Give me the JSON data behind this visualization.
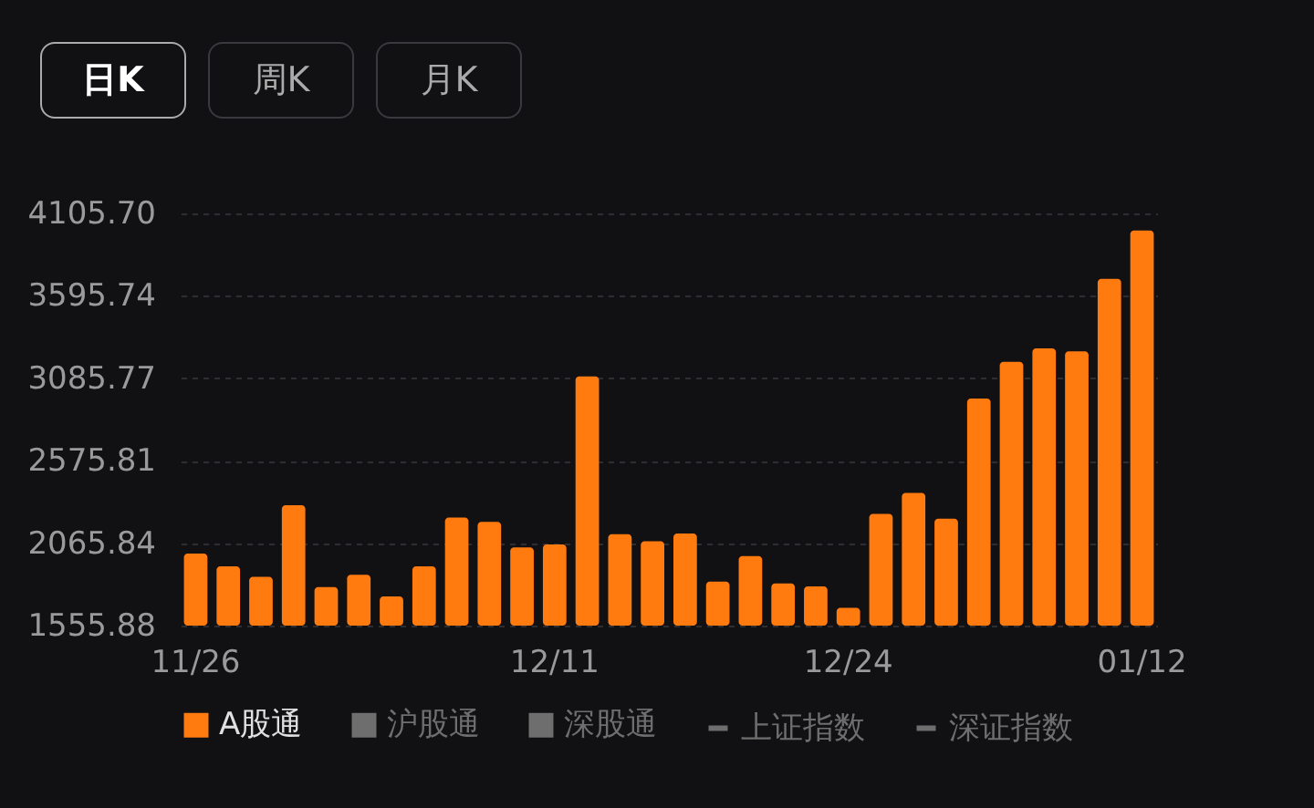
{
  "chart_data": {
    "type": "bar",
    "annotations": [
      "日K",
      "周K",
      "月K"
    ],
    "categories": [
      "11/26",
      null,
      null,
      null,
      null,
      null,
      null,
      null,
      null,
      null,
      null,
      "12/11",
      null,
      null,
      null,
      null,
      null,
      null,
      null,
      null,
      "12/24",
      null,
      null,
      null,
      null,
      null,
      null,
      null,
      null,
      "01/12"
    ],
    "series": [
      {
        "name": "A股通",
        "color": "#ff7a0f",
        "values": [
          2001,
          1922,
          1858,
          2300,
          1794,
          1870,
          1737,
          1922,
          2224,
          2198,
          2040,
          2058,
          3097,
          2122,
          2077,
          2126,
          1828,
          1986,
          1817,
          1798,
          1666,
          2247,
          2376,
          2217,
          2961,
          3188,
          3271,
          3252,
          3701,
          4000
        ]
      },
      {
        "name": "沪股通",
        "color": "#6e6e6e",
        "values": [
          null,
          null,
          null,
          null,
          null,
          null,
          null,
          null,
          null,
          null,
          null,
          null,
          null,
          null,
          null,
          null,
          null,
          null,
          null,
          null,
          null,
          null,
          null,
          null,
          null,
          null,
          null,
          null,
          null,
          null
        ]
      },
      {
        "name": "深股通",
        "color": "#6e6e6e",
        "values": [
          null,
          null,
          null,
          null,
          null,
          null,
          null,
          null,
          null,
          null,
          null,
          null,
          null,
          null,
          null,
          null,
          null,
          null,
          null,
          null,
          null,
          null,
          null,
          null,
          null,
          null,
          null,
          null,
          null,
          null
        ]
      },
      {
        "name": "上证指数",
        "type": "line",
        "color": "#6e6e6e",
        "values": [
          null,
          null,
          null,
          null,
          null,
          null,
          null,
          null,
          null,
          null,
          null,
          null,
          null,
          null,
          null,
          null,
          null,
          null,
          null,
          null,
          null,
          null,
          null,
          null,
          null,
          null,
          null,
          null,
          null,
          null
        ]
      },
      {
        "name": "深证指数",
        "type": "line",
        "color": "#6e6e6e",
        "values": [
          null,
          null,
          null,
          null,
          null,
          null,
          null,
          null,
          null,
          null,
          null,
          null,
          null,
          null,
          null,
          null,
          null,
          null,
          null,
          null,
          null,
          null,
          null,
          null,
          null,
          null,
          null,
          null,
          null,
          null
        ]
      }
    ],
    "ylim": [
      1555.88,
      4105.7
    ],
    "yticks": [
      {
        "value": 1555.88,
        "label": "1555.88"
      },
      {
        "value": 2065.84,
        "label": "2065.84"
      },
      {
        "value": 2575.81,
        "label": "2575.81"
      },
      {
        "value": 3085.77,
        "label": "3085.77"
      },
      {
        "value": 3595.74,
        "label": "3595.74"
      },
      {
        "value": 4105.7,
        "label": "4105.70"
      }
    ],
    "grid": "y",
    "legend": "bottom"
  }
}
